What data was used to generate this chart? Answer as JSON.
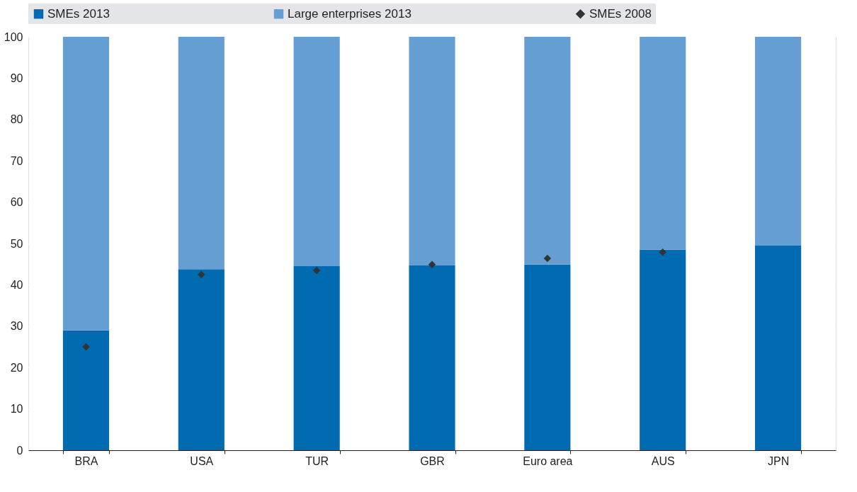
{
  "chart_data": {
    "type": "bar",
    "stacked": true,
    "categories": [
      "BRA",
      "USA",
      "TUR",
      "GBR",
      "Euro area",
      "AUS",
      "JPN"
    ],
    "series": [
      {
        "name": "SMEs 2013",
        "color": "#006bb0",
        "values": [
          29,
          43.8,
          44.5,
          44.7,
          44.9,
          48.5,
          49.5
        ]
      },
      {
        "name": "Large enterprises 2013",
        "color": "#659ed2",
        "values": [
          71,
          56.2,
          55.5,
          55.3,
          55.1,
          51.5,
          50.5
        ]
      },
      {
        "name": "SMEs 2008",
        "type": "scatter",
        "marker": "diamond",
        "color": "#333333",
        "values": [
          25,
          42.5,
          43.5,
          44.9,
          46.4,
          47.9,
          null
        ]
      }
    ],
    "ylim": [
      0,
      100
    ],
    "yticks": [
      0,
      10,
      20,
      30,
      40,
      50,
      60,
      70,
      80,
      90,
      100
    ],
    "grid": true,
    "legend": "top"
  }
}
